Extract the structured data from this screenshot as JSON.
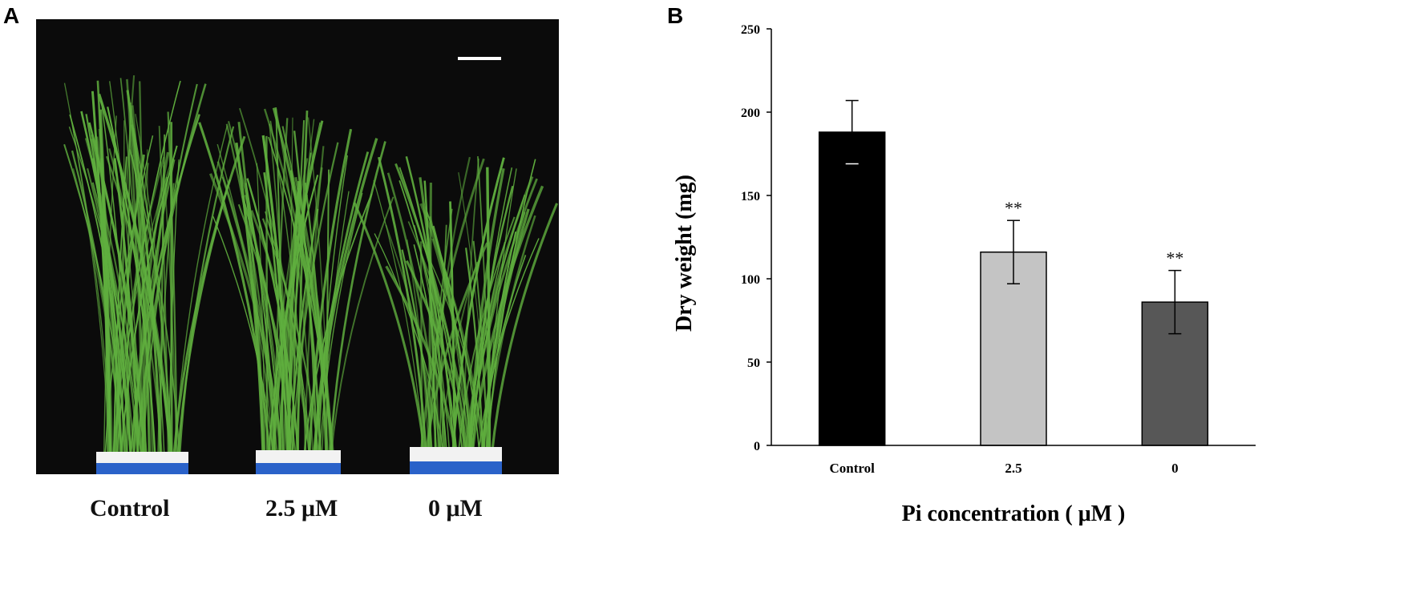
{
  "panels": {
    "a": {
      "label": "A",
      "captions": [
        "Control",
        "2.5 μM",
        "0 μM"
      ],
      "background_color": "#0b0b0b",
      "plant_color": "#5fae3e",
      "pot_color": "#f2f2f2",
      "tray_color": "#2a62c9"
    },
    "b": {
      "label": "B"
    }
  },
  "chart_data": {
    "type": "bar",
    "categories": [
      "Control",
      "2.5",
      "0"
    ],
    "values": [
      188,
      116,
      86
    ],
    "errors": [
      19,
      19,
      19
    ],
    "significance": [
      "",
      "**",
      "**"
    ],
    "bar_colors": [
      "#000000",
      "#c4c4c4",
      "#575757"
    ],
    "xlabel": "Pi concentration ( μM )",
    "ylabel": "Dry weight (mg)",
    "ylim": [
      0,
      250
    ],
    "yticks": [
      0,
      50,
      100,
      150,
      200,
      250
    ],
    "grid": false,
    "legend": "none"
  }
}
